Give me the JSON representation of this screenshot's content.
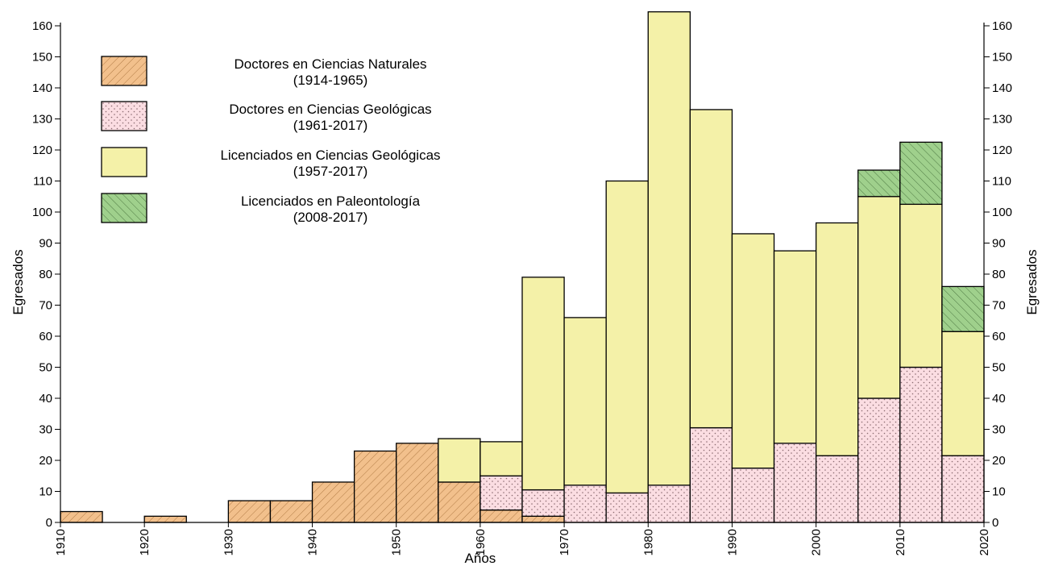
{
  "chart_data": {
    "type": "bar",
    "stacking": "stacked",
    "bin_width": 5,
    "xlabel": "Años",
    "ylabel_left": "Egresados",
    "ylabel_right": "Egresados",
    "xlim": [
      1910,
      2020
    ],
    "ylim": [
      0,
      160
    ],
    "x_ticks": [
      1910,
      1920,
      1930,
      1940,
      1950,
      1960,
      1970,
      1980,
      1990,
      2000,
      2010,
      2020
    ],
    "x_tick_labels": [
      "1910",
      "1920",
      "1930",
      "1940",
      "1950",
      "1960",
      "1970",
      "1980",
      "1990",
      "2000",
      "2010",
      "2020"
    ],
    "y_ticks": [
      0,
      10,
      20,
      30,
      40,
      50,
      60,
      70,
      80,
      90,
      100,
      110,
      120,
      130,
      140,
      150,
      160
    ],
    "y_tick_labels": [
      "0",
      "10",
      "20",
      "30",
      "40",
      "50",
      "60",
      "70",
      "80",
      "90",
      "100",
      "110",
      "120",
      "130",
      "140",
      "150",
      "160"
    ],
    "grid": false,
    "legend_position": "top-left",
    "bins": [
      1910,
      1915,
      1920,
      1925,
      1930,
      1935,
      1940,
      1945,
      1950,
      1955,
      1960,
      1965,
      1970,
      1975,
      1980,
      1985,
      1990,
      1995,
      2000,
      2005,
      2010,
      2015
    ],
    "series": [
      {
        "name": "Doctores en Ciencias Naturales",
        "period": "(1914-1965)",
        "color": "#f2c08c",
        "pattern": "hatch-forward",
        "values": [
          3.5,
          0,
          2,
          0,
          7,
          7,
          13,
          23,
          25.5,
          13,
          4,
          2,
          0,
          0,
          0,
          0,
          0,
          0,
          0,
          0,
          0,
          0
        ]
      },
      {
        "name": "Doctores en Ciencias Geológicas",
        "period": "(1961-2017)",
        "color": "#fbdde2",
        "pattern": "dots",
        "values": [
          0,
          0,
          0,
          0,
          0,
          0,
          0,
          0,
          0,
          0,
          11,
          8.5,
          12,
          9.5,
          12,
          30.5,
          17.5,
          25.5,
          21.5,
          40,
          50,
          21.5
        ]
      },
      {
        "name": "Licenciados en Ciencias Geológicas",
        "period": "(1957-2017)",
        "color": "#f4f1a8",
        "pattern": "solid",
        "values": [
          0,
          0,
          0,
          0,
          0,
          0,
          0,
          0,
          0,
          14,
          11,
          68.5,
          54,
          100.5,
          152.5,
          102.5,
          75.5,
          62,
          75,
          65,
          52.5,
          40
        ]
      },
      {
        "name": "Licenciados en Paleontología",
        "period": "(2008-2017)",
        "color": "#9fd08c",
        "pattern": "hatch-back",
        "values": [
          0,
          0,
          0,
          0,
          0,
          0,
          0,
          0,
          0,
          0,
          0,
          0,
          0,
          0,
          0,
          0,
          0,
          0,
          0,
          8.5,
          20,
          14.5
        ]
      }
    ]
  }
}
